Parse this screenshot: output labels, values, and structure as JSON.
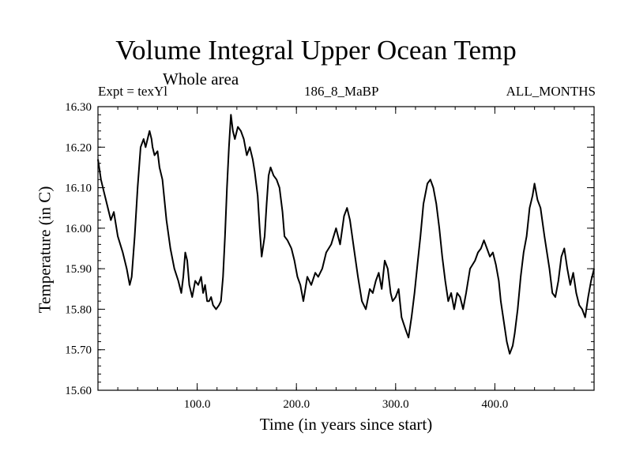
{
  "header": {
    "title": "Volume Integral Upper Ocean Temp",
    "subtitle": "Whole area",
    "left_info": "Expt = texYl",
    "center_info": "186_8_MaBP",
    "right_info": "ALL_MONTHS"
  },
  "colors": {
    "line": "#000000",
    "axes": "#000000",
    "background": "#ffffff"
  },
  "chart_data": {
    "type": "line",
    "title": "Volume Integral Upper Ocean Temp",
    "subtitle": "Whole area",
    "xlabel": "Time (in years since start)",
    "ylabel": "Temperature (in C)",
    "xlim": [
      0,
      500
    ],
    "ylim": [
      15.6,
      16.3
    ],
    "x_ticks": [
      100,
      200,
      300,
      400
    ],
    "x_tick_labels": [
      "100.0",
      "200.0",
      "300.0",
      "400.0"
    ],
    "y_ticks": [
      15.6,
      15.7,
      15.8,
      15.9,
      16.0,
      16.1,
      16.2,
      16.3
    ],
    "y_tick_labels": [
      "15.60",
      "15.70",
      "15.80",
      "15.90",
      "16.00",
      "16.10",
      "16.20",
      "16.30"
    ],
    "grid": false,
    "legend": "none",
    "series": [
      {
        "x": [
          0,
          3,
          6,
          9,
          13,
          16,
          20,
          25,
          29,
          32,
          34,
          37,
          40,
          43,
          46,
          48,
          50,
          52,
          54,
          55,
          57,
          60,
          62,
          65,
          69,
          73,
          77,
          81,
          84,
          86,
          88,
          90,
          92,
          95,
          98,
          101,
          104,
          106,
          108,
          110,
          112,
          114,
          116,
          119,
          122,
          124,
          126,
          128,
          130,
          132,
          134,
          136,
          138,
          141,
          144,
          147,
          150,
          153,
          156,
          158,
          161,
          163,
          165,
          168,
          170,
          172,
          174,
          177,
          180,
          183,
          186,
          188,
          191,
          195,
          198,
          201,
          204,
          207,
          211,
          215,
          219,
          222,
          226,
          230,
          235,
          240,
          244,
          248,
          251,
          254,
          258,
          262,
          266,
          270,
          274,
          277,
          280,
          283,
          286,
          289,
          292,
          295,
          297,
          300,
          303,
          306,
          310,
          313,
          316,
          319,
          322,
          325,
          328,
          332,
          335,
          338,
          341,
          344,
          347,
          350,
          353,
          356,
          359,
          362,
          365,
          368,
          371,
          375,
          380,
          383,
          386,
          389,
          392,
          395,
          398,
          401,
          404,
          406,
          409,
          412,
          415,
          418,
          420,
          423,
          426,
          429,
          432,
          435,
          438,
          440,
          443,
          446,
          450,
          455,
          458,
          461,
          464,
          467,
          470,
          473,
          476,
          479,
          482,
          485,
          488,
          491,
          494,
          497,
          500
        ],
        "y": [
          16.17,
          16.12,
          16.09,
          16.06,
          16.02,
          16.04,
          15.98,
          15.94,
          15.9,
          15.86,
          15.88,
          15.98,
          16.1,
          16.2,
          16.22,
          16.2,
          16.22,
          16.24,
          16.22,
          16.2,
          16.18,
          16.19,
          16.15,
          16.12,
          16.02,
          15.95,
          15.9,
          15.87,
          15.84,
          15.88,
          15.94,
          15.92,
          15.86,
          15.83,
          15.87,
          15.86,
          15.88,
          15.84,
          15.86,
          15.82,
          15.82,
          15.83,
          15.81,
          15.8,
          15.81,
          15.82,
          15.88,
          15.98,
          16.1,
          16.2,
          16.28,
          16.24,
          16.22,
          16.25,
          16.24,
          16.22,
          16.18,
          16.2,
          16.17,
          16.14,
          16.08,
          16.0,
          15.93,
          15.98,
          16.06,
          16.13,
          16.15,
          16.13,
          16.12,
          16.1,
          16.04,
          15.98,
          15.97,
          15.95,
          15.92,
          15.88,
          15.86,
          15.82,
          15.88,
          15.86,
          15.89,
          15.88,
          15.9,
          15.94,
          15.96,
          16.0,
          15.96,
          16.03,
          16.05,
          16.02,
          15.95,
          15.88,
          15.82,
          15.8,
          15.85,
          15.84,
          15.87,
          15.89,
          15.85,
          15.92,
          15.9,
          15.84,
          15.82,
          15.83,
          15.85,
          15.78,
          15.75,
          15.73,
          15.78,
          15.84,
          15.91,
          15.98,
          16.06,
          16.11,
          16.12,
          16.1,
          16.06,
          16.0,
          15.93,
          15.87,
          15.82,
          15.84,
          15.8,
          15.84,
          15.83,
          15.8,
          15.84,
          15.9,
          15.92,
          15.94,
          15.95,
          15.97,
          15.95,
          15.93,
          15.94,
          15.91,
          15.87,
          15.82,
          15.77,
          15.72,
          15.69,
          15.71,
          15.74,
          15.8,
          15.88,
          15.94,
          15.98,
          16.05,
          16.08,
          16.11,
          16.07,
          16.05,
          15.98,
          15.9,
          15.84,
          15.83,
          15.87,
          15.93,
          15.95,
          15.9,
          15.86,
          15.89,
          15.84,
          15.81,
          15.8,
          15.78,
          15.83,
          15.87,
          15.9
        ]
      }
    ]
  }
}
